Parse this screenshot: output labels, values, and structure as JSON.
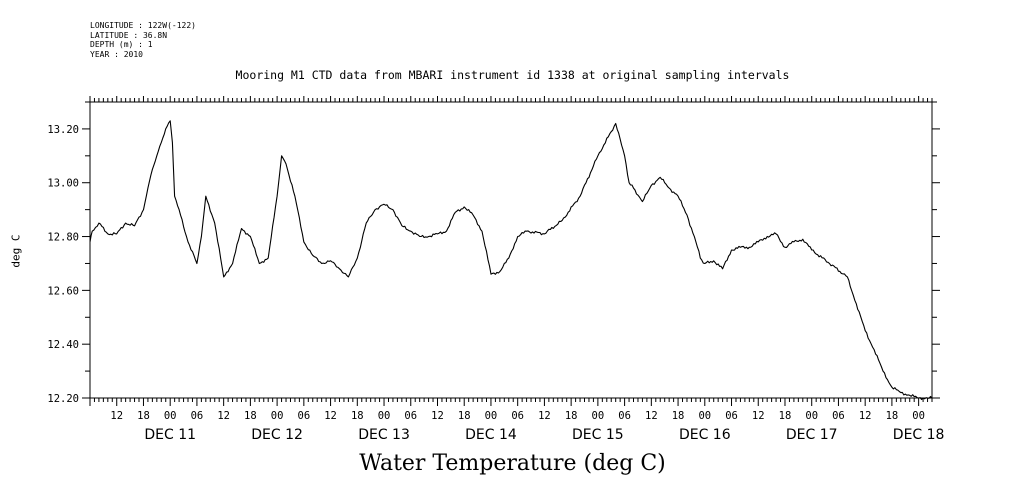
{
  "metadata": {
    "lines": [
      "LONGITUDE : 122W(-122)",
      "LATITUDE : 36.8N",
      "DEPTH (m) : 1",
      "YEAR : 2010"
    ]
  },
  "chart_data": {
    "type": "line",
    "title": "Mooring M1 CTD data from MBARI instrument id 1338 at original sampling intervals",
    "bottom_title": "Water Temperature (deg C)",
    "ylabel": "deg C",
    "xlabel": "",
    "ylim": [
      12.2,
      13.3
    ],
    "xlim": [
      "2010-12-10T06:00",
      "2010-12-18T03:00"
    ],
    "yticks": [
      "12.20",
      "12.40",
      "12.60",
      "12.80",
      "13.00",
      "13.20"
    ],
    "hour_ticks": [
      "12",
      "18",
      "00",
      "06",
      "12",
      "18",
      "00",
      "06",
      "12",
      "18",
      "00",
      "06",
      "12",
      "18",
      "00",
      "06",
      "12",
      "18",
      "00",
      "06",
      "12",
      "18",
      "00",
      "06",
      "12",
      "18",
      "00",
      "06",
      "12",
      "18",
      "00"
    ],
    "day_labels": [
      "DEC 11",
      "DEC 12",
      "DEC 13",
      "DEC 14",
      "DEC 15",
      "DEC 16",
      "DEC 17",
      "DEC 18"
    ],
    "grid": false,
    "legend": "none",
    "series": [
      {
        "x": [
          "2010-12-10T06:00",
          "2010-12-10T06:30",
          "2010-12-10T08:00",
          "2010-12-10T10:00",
          "2010-12-10T12:00",
          "2010-12-10T14:00",
          "2010-12-10T16:00",
          "2010-12-10T18:00",
          "2010-12-10T19:00",
          "2010-12-10T20:00",
          "2010-12-10T21:00",
          "2010-12-10T22:00",
          "2010-12-10T23:00",
          "2010-12-11T00:00",
          "2010-12-11T00:30",
          "2010-12-11T01:00",
          "2010-12-11T02:00",
          "2010-12-11T04:00",
          "2010-12-11T06:00",
          "2010-12-11T07:00",
          "2010-12-11T08:00",
          "2010-12-11T10:00",
          "2010-12-11T12:00",
          "2010-12-11T14:00",
          "2010-12-11T16:00",
          "2010-12-11T18:00",
          "2010-12-11T20:00",
          "2010-12-11T22:00",
          "2010-12-12T00:00",
          "2010-12-12T01:00",
          "2010-12-12T02:00",
          "2010-12-12T04:00",
          "2010-12-12T06:00",
          "2010-12-12T08:00",
          "2010-12-12T10:00",
          "2010-12-12T12:00",
          "2010-12-12T14:00",
          "2010-12-12T16:00",
          "2010-12-12T18:00",
          "2010-12-12T20:00",
          "2010-12-12T22:00",
          "2010-12-13T00:00",
          "2010-12-13T02:00",
          "2010-12-13T04:00",
          "2010-12-13T06:00",
          "2010-12-13T08:00",
          "2010-12-13T10:00",
          "2010-12-13T12:00",
          "2010-12-13T14:00",
          "2010-12-13T16:00",
          "2010-12-13T18:00",
          "2010-12-13T20:00",
          "2010-12-13T22:00",
          "2010-12-14T00:00",
          "2010-12-14T02:00",
          "2010-12-14T04:00",
          "2010-12-14T06:00",
          "2010-12-14T08:00",
          "2010-12-14T12:00",
          "2010-12-14T16:00",
          "2010-12-14T20:00",
          "2010-12-15T00:00",
          "2010-12-15T04:00",
          "2010-12-15T06:00",
          "2010-12-15T07:00",
          "2010-12-15T08:00",
          "2010-12-15T10:00",
          "2010-12-15T12:00",
          "2010-12-15T14:00",
          "2010-12-15T16:00",
          "2010-12-15T18:00",
          "2010-12-15T20:00",
          "2010-12-15T22:00",
          "2010-12-15T23:00",
          "2010-12-16T00:00",
          "2010-12-16T02:00",
          "2010-12-16T04:00",
          "2010-12-16T06:00",
          "2010-12-16T08:00",
          "2010-12-16T10:00",
          "2010-12-16T12:00",
          "2010-12-16T14:00",
          "2010-12-16T16:00",
          "2010-12-16T18:00",
          "2010-12-16T20:00",
          "2010-12-16T22:00",
          "2010-12-17T00:00",
          "2010-12-17T04:00",
          "2010-12-17T08:00",
          "2010-12-17T10:00",
          "2010-12-17T12:00",
          "2010-12-17T14:00",
          "2010-12-17T16:00",
          "2010-12-17T18:00",
          "2010-12-17T20:00",
          "2010-12-17T22:00",
          "2010-12-18T00:00",
          "2010-12-18T02:00",
          "2010-12-18T03:00"
        ],
        "values": [
          12.78,
          12.82,
          12.85,
          12.81,
          12.81,
          12.85,
          12.84,
          12.9,
          12.98,
          13.05,
          13.1,
          13.15,
          13.2,
          13.23,
          13.15,
          12.95,
          12.9,
          12.78,
          12.7,
          12.8,
          12.95,
          12.85,
          12.65,
          12.7,
          12.83,
          12.8,
          12.7,
          12.72,
          12.95,
          13.1,
          13.07,
          12.95,
          12.78,
          12.73,
          12.7,
          12.71,
          12.68,
          12.65,
          12.72,
          12.85,
          12.9,
          12.92,
          12.9,
          12.84,
          12.82,
          12.8,
          12.8,
          12.81,
          12.82,
          12.89,
          12.91,
          12.88,
          12.82,
          12.66,
          12.67,
          12.72,
          12.8,
          12.82,
          12.81,
          12.86,
          12.95,
          13.1,
          13.22,
          13.1,
          13.0,
          12.98,
          12.93,
          12.99,
          13.02,
          12.98,
          12.95,
          12.88,
          12.78,
          12.72,
          12.7,
          12.71,
          12.68,
          12.75,
          12.76,
          12.76,
          12.78,
          12.8,
          12.81,
          12.76,
          12.78,
          12.79,
          12.75,
          12.7,
          12.65,
          12.55,
          12.45,
          12.38,
          12.3,
          12.24,
          12.22,
          12.21,
          12.2,
          12.2,
          12.2
        ]
      }
    ]
  }
}
